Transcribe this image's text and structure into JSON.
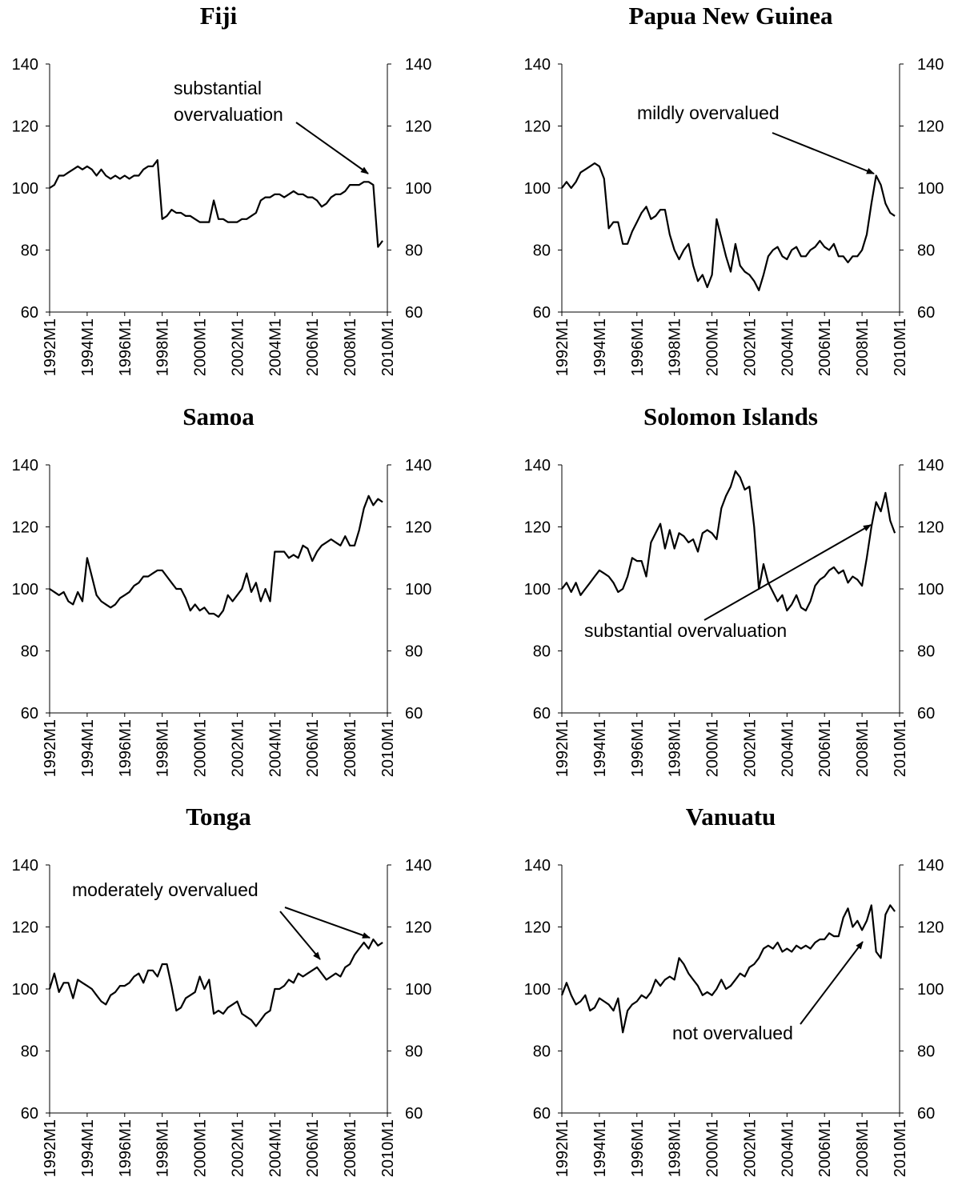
{
  "chart_data": [
    {
      "type": "line",
      "title": "Fiji",
      "color": "#000000",
      "x": [
        "1992M1",
        "1992M4",
        "1992M7",
        "1992M10",
        "1993M1",
        "1993M4",
        "1993M7",
        "1993M10",
        "1994M1",
        "1994M4",
        "1994M7",
        "1994M10",
        "1995M1",
        "1995M4",
        "1995M7",
        "1995M10",
        "1996M1",
        "1996M4",
        "1996M7",
        "1996M10",
        "1997M1",
        "1997M4",
        "1997M7",
        "1997M10",
        "1998M1",
        "1998M4",
        "1998M7",
        "1998M10",
        "1999M1",
        "1999M4",
        "1999M7",
        "1999M10",
        "2000M1",
        "2000M4",
        "2000M7",
        "2000M10",
        "2001M1",
        "2001M4",
        "2001M7",
        "2001M10",
        "2002M1",
        "2002M4",
        "2002M7",
        "2002M10",
        "2003M1",
        "2003M4",
        "2003M7",
        "2003M10",
        "2004M1",
        "2004M4",
        "2004M7",
        "2004M10",
        "2005M1",
        "2005M4",
        "2005M7",
        "2005M10",
        "2006M1",
        "2006M4",
        "2006M7",
        "2006M10",
        "2007M1",
        "2007M4",
        "2007M7",
        "2007M10",
        "2008M1",
        "2008M4",
        "2008M7",
        "2008M10",
        "2009M1",
        "2009M4",
        "2009M7",
        "2009M10"
      ],
      "values": [
        100,
        101,
        104,
        104,
        105,
        106,
        107,
        106,
        107,
        106,
        104,
        106,
        104,
        103,
        104,
        103,
        104,
        103,
        104,
        104,
        106,
        107,
        107,
        109,
        90,
        91,
        93,
        92,
        92,
        91,
        91,
        90,
        89,
        89,
        89,
        96,
        90,
        90,
        89,
        89,
        89,
        90,
        90,
        91,
        92,
        96,
        97,
        97,
        98,
        98,
        97,
        98,
        99,
        98,
        98,
        97,
        97,
        96,
        94,
        95,
        97,
        98,
        98,
        99,
        101,
        101,
        101,
        102,
        102,
        101,
        81,
        83
      ],
      "annotation": [
        "substantial",
        "overvaluation"
      ],
      "xticks": [
        "1992M1",
        "1994M1",
        "1996M1",
        "1998M1",
        "2000M1",
        "2002M1",
        "2004M1",
        "2006M1",
        "2008M1",
        "2010M1"
      ],
      "ylim": [
        60,
        140
      ],
      "yticks": [
        60,
        80,
        100,
        120,
        140
      ],
      "y2lim": [
        60,
        140
      ],
      "y2ticks": [
        60,
        80,
        100,
        120,
        140
      ]
    },
    {
      "type": "line",
      "title": "Papua New Guinea",
      "color": "#000000",
      "x": [
        "1992M1",
        "1992M4",
        "1992M7",
        "1992M10",
        "1993M1",
        "1993M4",
        "1993M7",
        "1993M10",
        "1994M1",
        "1994M4",
        "1994M7",
        "1994M10",
        "1995M1",
        "1995M4",
        "1995M7",
        "1995M10",
        "1996M1",
        "1996M4",
        "1996M7",
        "1996M10",
        "1997M1",
        "1997M4",
        "1997M7",
        "1997M10",
        "1998M1",
        "1998M4",
        "1998M7",
        "1998M10",
        "1999M1",
        "1999M4",
        "1999M7",
        "1999M10",
        "2000M1",
        "2000M4",
        "2000M7",
        "2000M10",
        "2001M1",
        "2001M4",
        "2001M7",
        "2001M10",
        "2002M1",
        "2002M4",
        "2002M7",
        "2002M10",
        "2003M1",
        "2003M4",
        "2003M7",
        "2003M10",
        "2004M1",
        "2004M4",
        "2004M7",
        "2004M10",
        "2005M1",
        "2005M4",
        "2005M7",
        "2005M10",
        "2006M1",
        "2006M4",
        "2006M7",
        "2006M10",
        "2007M1",
        "2007M4",
        "2007M7",
        "2007M10",
        "2008M1",
        "2008M4",
        "2008M7",
        "2008M10",
        "2009M1",
        "2009M4",
        "2009M7",
        "2009M10"
      ],
      "values": [
        100,
        102,
        100,
        102,
        105,
        106,
        107,
        108,
        107,
        103,
        87,
        89,
        89,
        82,
        82,
        86,
        89,
        92,
        94,
        90,
        91,
        93,
        93,
        85,
        80,
        77,
        80,
        82,
        75,
        70,
        72,
        68,
        72,
        90,
        84,
        78,
        73,
        82,
        75,
        73,
        72,
        70,
        67,
        72,
        78,
        80,
        81,
        78,
        77,
        80,
        81,
        78,
        78,
        80,
        81,
        83,
        81,
        80,
        82,
        78,
        78,
        76,
        78,
        78,
        80,
        85,
        95,
        104,
        101,
        95,
        92,
        91
      ],
      "annotation": [
        "mildly overvalued"
      ],
      "xticks": [
        "1992M1",
        "1994M1",
        "1996M1",
        "1998M1",
        "2000M1",
        "2002M1",
        "2004M1",
        "2006M1",
        "2008M1",
        "2010M1"
      ],
      "ylim": [
        60,
        140
      ],
      "yticks": [
        60,
        80,
        100,
        120,
        140
      ],
      "y2lim": [
        60,
        140
      ],
      "y2ticks": [
        60,
        80,
        100,
        120,
        140
      ]
    },
    {
      "type": "line",
      "title": "Samoa",
      "color": "#000000",
      "x": [
        "1992M1",
        "1992M4",
        "1992M7",
        "1992M10",
        "1993M1",
        "1993M4",
        "1993M7",
        "1993M10",
        "1994M1",
        "1994M4",
        "1994M7",
        "1994M10",
        "1995M1",
        "1995M4",
        "1995M7",
        "1995M10",
        "1996M1",
        "1996M4",
        "1996M7",
        "1996M10",
        "1997M1",
        "1997M4",
        "1997M7",
        "1997M10",
        "1998M1",
        "1998M4",
        "1998M7",
        "1998M10",
        "1999M1",
        "1999M4",
        "1999M7",
        "1999M10",
        "2000M1",
        "2000M4",
        "2000M7",
        "2000M10",
        "2001M1",
        "2001M4",
        "2001M7",
        "2001M10",
        "2002M1",
        "2002M4",
        "2002M7",
        "2002M10",
        "2003M1",
        "2003M4",
        "2003M7",
        "2003M10",
        "2004M1",
        "2004M4",
        "2004M7",
        "2004M10",
        "2005M1",
        "2005M4",
        "2005M7",
        "2005M10",
        "2006M1",
        "2006M4",
        "2006M7",
        "2006M10",
        "2007M1",
        "2007M4",
        "2007M7",
        "2007M10",
        "2008M1",
        "2008M4",
        "2008M7",
        "2008M10",
        "2009M1",
        "2009M4",
        "2009M7",
        "2009M10"
      ],
      "values": [
        100,
        99,
        98,
        99,
        96,
        95,
        99,
        96,
        110,
        104,
        98,
        96,
        95,
        94,
        95,
        97,
        98,
        99,
        101,
        102,
        104,
        104,
        105,
        106,
        106,
        104,
        102,
        100,
        100,
        97,
        93,
        95,
        93,
        94,
        92,
        92,
        91,
        93,
        98,
        96,
        98,
        100,
        105,
        99,
        102,
        96,
        100,
        96,
        112,
        112,
        112,
        110,
        111,
        110,
        114,
        113,
        109,
        112,
        114,
        115,
        116,
        115,
        114,
        117,
        114,
        114,
        119,
        126,
        130,
        127,
        129,
        128
      ],
      "xticks": [
        "1992M1",
        "1994M1",
        "1996M1",
        "1998M1",
        "2000M1",
        "2002M1",
        "2004M1",
        "2006M1",
        "2008M1",
        "2010M1"
      ],
      "ylim": [
        60,
        140
      ],
      "yticks": [
        60,
        80,
        100,
        120,
        140
      ],
      "y2lim": [
        60,
        140
      ],
      "y2ticks": [
        60,
        80,
        100,
        120,
        140
      ]
    },
    {
      "type": "line",
      "title": "Solomon Islands",
      "color": "#000000",
      "x": [
        "1992M1",
        "1992M4",
        "1992M7",
        "1992M10",
        "1993M1",
        "1993M4",
        "1993M7",
        "1993M10",
        "1994M1",
        "1994M4",
        "1994M7",
        "1994M10",
        "1995M1",
        "1995M4",
        "1995M7",
        "1995M10",
        "1996M1",
        "1996M4",
        "1996M7",
        "1996M10",
        "1997M1",
        "1997M4",
        "1997M7",
        "1997M10",
        "1998M1",
        "1998M4",
        "1998M7",
        "1998M10",
        "1999M1",
        "1999M4",
        "1999M7",
        "1999M10",
        "2000M1",
        "2000M4",
        "2000M7",
        "2000M10",
        "2001M1",
        "2001M4",
        "2001M7",
        "2001M10",
        "2002M1",
        "2002M4",
        "2002M7",
        "2002M10",
        "2003M1",
        "2003M4",
        "2003M7",
        "2003M10",
        "2004M1",
        "2004M4",
        "2004M7",
        "2004M10",
        "2005M1",
        "2005M4",
        "2005M7",
        "2005M10",
        "2006M1",
        "2006M4",
        "2006M7",
        "2006M10",
        "2007M1",
        "2007M4",
        "2007M7",
        "2007M10",
        "2008M1",
        "2008M4",
        "2008M7",
        "2008M10",
        "2009M1",
        "2009M4",
        "2009M7",
        "2009M10"
      ],
      "values": [
        100,
        102,
        99,
        102,
        98,
        100,
        102,
        104,
        106,
        105,
        104,
        102,
        99,
        100,
        104,
        110,
        109,
        109,
        104,
        115,
        118,
        121,
        113,
        119,
        113,
        118,
        117,
        115,
        116,
        112,
        118,
        119,
        118,
        116,
        126,
        130,
        133,
        138,
        136,
        132,
        133,
        120,
        100,
        108,
        102,
        99,
        96,
        98,
        93,
        95,
        98,
        94,
        93,
        96,
        101,
        103,
        104,
        106,
        107,
        105,
        106,
        102,
        104,
        103,
        101,
        110,
        120,
        128,
        125,
        131,
        122,
        118
      ],
      "annotation": [
        "substantial overvaluation"
      ],
      "xticks": [
        "1992M1",
        "1994M1",
        "1996M1",
        "1998M1",
        "2000M1",
        "2002M1",
        "2004M1",
        "2006M1",
        "2008M1",
        "2010M1"
      ],
      "ylim": [
        60,
        140
      ],
      "yticks": [
        60,
        80,
        100,
        120,
        140
      ],
      "y2lim": [
        60,
        140
      ],
      "y2ticks": [
        60,
        80,
        100,
        120,
        140
      ]
    },
    {
      "type": "line",
      "title": "Tonga",
      "color": "#000000",
      "x": [
        "1992M1",
        "1992M4",
        "1992M7",
        "1992M10",
        "1993M1",
        "1993M4",
        "1993M7",
        "1993M10",
        "1994M1",
        "1994M4",
        "1994M7",
        "1994M10",
        "1995M1",
        "1995M4",
        "1995M7",
        "1995M10",
        "1996M1",
        "1996M4",
        "1996M7",
        "1996M10",
        "1997M1",
        "1997M4",
        "1997M7",
        "1997M10",
        "1998M1",
        "1998M4",
        "1998M7",
        "1998M10",
        "1999M1",
        "1999M4",
        "1999M7",
        "1999M10",
        "2000M1",
        "2000M4",
        "2000M7",
        "2000M10",
        "2001M1",
        "2001M4",
        "2001M7",
        "2001M10",
        "2002M1",
        "2002M4",
        "2002M7",
        "2002M10",
        "2003M1",
        "2003M4",
        "2003M7",
        "2003M10",
        "2004M1",
        "2004M4",
        "2004M7",
        "2004M10",
        "2005M1",
        "2005M4",
        "2005M7",
        "2005M10",
        "2006M1",
        "2006M4",
        "2006M7",
        "2006M10",
        "2007M1",
        "2007M4",
        "2007M7",
        "2007M10",
        "2008M1",
        "2008M4",
        "2008M7",
        "2008M10",
        "2009M1",
        "2009M4",
        "2009M7",
        "2009M10"
      ],
      "values": [
        100,
        105,
        99,
        102,
        102,
        97,
        103,
        102,
        101,
        100,
        98,
        96,
        95,
        98,
        99,
        101,
        101,
        102,
        104,
        105,
        102,
        106,
        106,
        104,
        108,
        108,
        101,
        93,
        94,
        97,
        98,
        99,
        104,
        100,
        103,
        92,
        93,
        92,
        94,
        95,
        96,
        92,
        91,
        90,
        88,
        90,
        92,
        93,
        100,
        100,
        101,
        103,
        102,
        105,
        104,
        105,
        106,
        107,
        105,
        103,
        104,
        105,
        104,
        107,
        108,
        111,
        113,
        115,
        113,
        116,
        114,
        115
      ],
      "annotation": [
        "moderately overvalued"
      ],
      "xticks": [
        "1992M1",
        "1994M1",
        "1996M1",
        "1998M1",
        "2000M1",
        "2002M1",
        "2004M1",
        "2006M1",
        "2008M1",
        "2010M1"
      ],
      "ylim": [
        60,
        140
      ],
      "yticks": [
        60,
        80,
        100,
        120,
        140
      ],
      "y2lim": [
        60,
        140
      ],
      "y2ticks": [
        60,
        80,
        100,
        120,
        140
      ]
    },
    {
      "type": "line",
      "title": "Vanuatu",
      "color": "#000000",
      "x": [
        "1992M1",
        "1992M4",
        "1992M7",
        "1992M10",
        "1993M1",
        "1993M4",
        "1993M7",
        "1993M10",
        "1994M1",
        "1994M4",
        "1994M7",
        "1994M10",
        "1995M1",
        "1995M4",
        "1995M7",
        "1995M10",
        "1996M1",
        "1996M4",
        "1996M7",
        "1996M10",
        "1997M1",
        "1997M4",
        "1997M7",
        "1997M10",
        "1998M1",
        "1998M4",
        "1998M7",
        "1998M10",
        "1999M1",
        "1999M4",
        "1999M7",
        "1999M10",
        "2000M1",
        "2000M4",
        "2000M7",
        "2000M10",
        "2001M1",
        "2001M4",
        "2001M7",
        "2001M10",
        "2002M1",
        "2002M4",
        "2002M7",
        "2002M10",
        "2003M1",
        "2003M4",
        "2003M7",
        "2003M10",
        "2004M1",
        "2004M4",
        "2004M7",
        "2004M10",
        "2005M1",
        "2005M4",
        "2005M7",
        "2005M10",
        "2006M1",
        "2006M4",
        "2006M7",
        "2006M10",
        "2007M1",
        "2007M4",
        "2007M7",
        "2007M10",
        "2008M1",
        "2008M4",
        "2008M7",
        "2008M10",
        "2009M1",
        "2009M4",
        "2009M7",
        "2009M10"
      ],
      "values": [
        98,
        102,
        98,
        95,
        96,
        98,
        93,
        94,
        97,
        96,
        95,
        93,
        97,
        86,
        93,
        95,
        96,
        98,
        97,
        99,
        103,
        101,
        103,
        104,
        103,
        110,
        108,
        105,
        103,
        101,
        98,
        99,
        98,
        100,
        103,
        100,
        101,
        103,
        105,
        104,
        107,
        108,
        110,
        113,
        114,
        113,
        115,
        112,
        113,
        112,
        114,
        113,
        114,
        113,
        115,
        116,
        116,
        118,
        117,
        117,
        123,
        126,
        120,
        122,
        119,
        122,
        127,
        112,
        110,
        124,
        127,
        125
      ],
      "annotation": [
        "not overvalued"
      ],
      "xticks": [
        "1992M1",
        "1994M1",
        "1996M1",
        "1998M1",
        "2000M1",
        "2002M1",
        "2004M1",
        "2006M1",
        "2008M1",
        "2010M1"
      ],
      "ylim": [
        60,
        140
      ],
      "yticks": [
        60,
        80,
        100,
        120,
        140
      ],
      "y2lim": [
        60,
        140
      ],
      "y2ticks": [
        60,
        80,
        100,
        120,
        140
      ]
    }
  ]
}
